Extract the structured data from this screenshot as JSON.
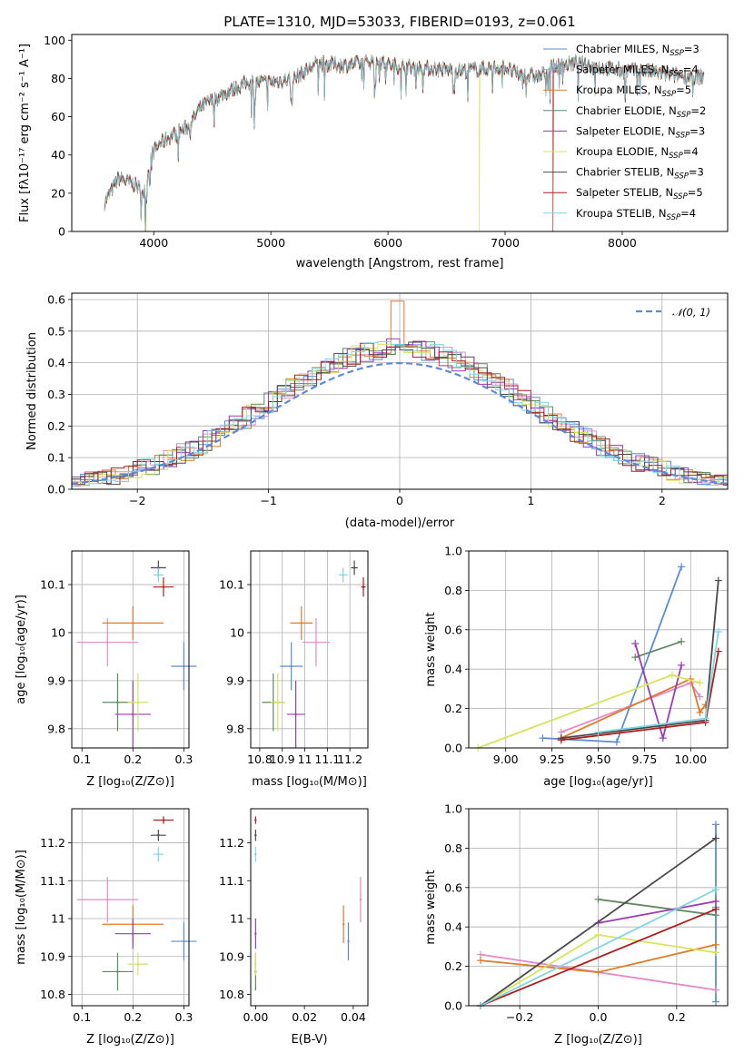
{
  "figure": {
    "title": "PLATE=1310, MJD=53033, FIBERID=0193, z=0.061"
  },
  "colors": {
    "Chabrier MILES": "#5a8bd8",
    "Salpeter MILES": "#e38ac8",
    "Kroupa MILES": "#e07b28",
    "Chabrier ELODIE": "#5f8a62",
    "Salpeter ELODIE": "#9b3cb5",
    "Kroupa ELODIE": "#d6e45a",
    "Chabrier STELIB": "#4a4a4a",
    "Salpeter STELIB": "#b01e1e",
    "Kroupa STELIB": "#7fd6e3"
  },
  "chart_data": [
    {
      "id": "spectrum",
      "type": "line",
      "xlabel": "wavelength [Angstrom, rest frame]",
      "ylabel": "Flux [fλ10⁻¹⁷ erg cm⁻² s⁻¹ A⁻¹]",
      "xlim": [
        3300,
        8900
      ],
      "ylim": [
        0,
        103
      ],
      "xticks": [
        4000,
        5000,
        6000,
        7000,
        8000
      ],
      "yticks": [
        0,
        20,
        40,
        60,
        80,
        100
      ],
      "legend": "top-right",
      "legend_entries": [
        {
          "model": "Chabrier MILES",
          "label": "Chabrier MILES, N",
          "sub": "SSP",
          "tail": "=3"
        },
        {
          "model": "Salpeter MILES",
          "label": "Salpeter MILES, N",
          "sub": "SSP",
          "tail": "=4"
        },
        {
          "model": "Kroupa MILES",
          "label": "Kroupa MILES, N",
          "sub": "SSP",
          "tail": "=5"
        },
        {
          "model": "Chabrier ELODIE",
          "label": "Chabrier ELODIE, N",
          "sub": "SSP",
          "tail": "=2"
        },
        {
          "model": "Salpeter ELODIE",
          "label": "Salpeter ELODIE, N",
          "sub": "SSP",
          "tail": "=3"
        },
        {
          "model": "Kroupa ELODIE",
          "label": "Kroupa ELODIE, N",
          "sub": "SSP",
          "tail": "=4"
        },
        {
          "model": "Chabrier STELIB",
          "label": "Chabrier STELIB, N",
          "sub": "SSP",
          "tail": "=3"
        },
        {
          "model": "Salpeter STELIB",
          "label": "Salpeter STELIB, N",
          "sub": "SSP",
          "tail": "=5"
        },
        {
          "model": "Kroupa STELIB",
          "label": "Kroupa STELIB, N",
          "sub": "SSP",
          "tail": "=4"
        }
      ],
      "continuum": [
        [
          3580,
          15
        ],
        [
          3700,
          28
        ],
        [
          3850,
          24
        ],
        [
          3920,
          20
        ],
        [
          3980,
          40
        ],
        [
          4050,
          46
        ],
        [
          4150,
          50
        ],
        [
          4300,
          55
        ],
        [
          4400,
          65
        ],
        [
          4600,
          72
        ],
        [
          4800,
          78
        ],
        [
          5000,
          78
        ],
        [
          5200,
          80
        ],
        [
          5400,
          88
        ],
        [
          5600,
          87
        ],
        [
          5800,
          88
        ],
        [
          5900,
          90
        ],
        [
          6000,
          87
        ],
        [
          6200,
          86
        ],
        [
          6400,
          85
        ],
        [
          6600,
          84
        ],
        [
          6800,
          85
        ],
        [
          7000,
          86
        ],
        [
          7100,
          82
        ],
        [
          7300,
          81
        ],
        [
          7400,
          86
        ],
        [
          7600,
          88
        ],
        [
          7800,
          86
        ],
        [
          8000,
          84
        ],
        [
          8200,
          84
        ],
        [
          8400,
          82
        ],
        [
          8600,
          81
        ],
        [
          8700,
          81
        ]
      ],
      "drops": [
        {
          "model": "Kroupa ELODIE",
          "x": 3930
        },
        {
          "model": "Kroupa ELODIE",
          "x": 6780
        },
        {
          "model": "Salpeter STELIB",
          "x": 7410
        }
      ]
    },
    {
      "id": "residuals",
      "type": "histogram",
      "xlabel": "(data-model)/error",
      "ylabel": "Normed distribution",
      "xlim": [
        -2.5,
        2.5
      ],
      "ylim": [
        0,
        0.62
      ],
      "xticks": [
        -2,
        -1,
        0,
        1,
        2
      ],
      "yticks": [
        0.0,
        0.1,
        0.2,
        0.3,
        0.4,
        0.5,
        0.6
      ],
      "grid": true,
      "legend": "top-right",
      "reference_label": "𝒩(0, 1)",
      "bin_width": 0.1
    },
    {
      "id": "age_vs_Z",
      "type": "scatter",
      "xlabel": "Z [log₁₀(Z/Z⊙)]",
      "ylabel": "age  [log₁₀(age/yr)]",
      "xlim": [
        0.08,
        0.31
      ],
      "ylim": [
        9.76,
        10.17
      ],
      "xticks": [
        0.1,
        0.2,
        0.3
      ],
      "yticks": [
        9.8,
        9.9,
        10.0,
        10.1
      ],
      "grid": true,
      "points": [
        {
          "model": "Chabrier MILES",
          "x": 0.3,
          "y": 9.93,
          "ex": 0.025,
          "ey": 0.05
        },
        {
          "model": "Salpeter MILES",
          "x": 0.15,
          "y": 9.98,
          "ex": 0.06,
          "ey": 0.05
        },
        {
          "model": "Kroupa MILES",
          "x": 0.2,
          "y": 10.02,
          "ex": 0.06,
          "ey": 0.035
        },
        {
          "model": "Chabrier ELODIE",
          "x": 0.17,
          "y": 9.855,
          "ex": 0.03,
          "ey": 0.06
        },
        {
          "model": "Salpeter ELODIE",
          "x": 0.2,
          "y": 9.83,
          "ex": 0.035,
          "ey": 0.07
        },
        {
          "model": "Kroupa ELODIE",
          "x": 0.21,
          "y": 9.855,
          "ex": 0.02,
          "ey": 0.06
        },
        {
          "model": "Chabrier STELIB",
          "x": 0.25,
          "y": 10.135,
          "ex": 0.015,
          "ey": 0.015
        },
        {
          "model": "Salpeter STELIB",
          "x": 0.26,
          "y": 10.095,
          "ex": 0.02,
          "ey": 0.02
        },
        {
          "model": "Kroupa STELIB",
          "x": 0.25,
          "y": 10.12,
          "ex": 0.01,
          "ey": 0.015
        }
      ]
    },
    {
      "id": "age_vs_mass",
      "type": "scatter",
      "xlabel": "mass [log₁₀(M/M⊙)]",
      "ylabel": "",
      "xlim": [
        10.76,
        11.28
      ],
      "ylim": [
        9.76,
        10.17
      ],
      "xticks": [
        10.8,
        10.9,
        11.0,
        11.1,
        11.2
      ],
      "yticks": [
        9.8,
        9.9,
        10.0,
        10.1
      ],
      "grid": true,
      "points": [
        {
          "model": "Chabrier MILES",
          "x": 10.94,
          "y": 9.93,
          "ex": 0.05,
          "ey": 0.05
        },
        {
          "model": "Salpeter MILES",
          "x": 11.05,
          "y": 9.98,
          "ex": 0.06,
          "ey": 0.05
        },
        {
          "model": "Kroupa MILES",
          "x": 10.985,
          "y": 10.02,
          "ex": 0.05,
          "ey": 0.035
        },
        {
          "model": "Chabrier ELODIE",
          "x": 10.86,
          "y": 9.855,
          "ex": 0.05,
          "ey": 0.06
        },
        {
          "model": "Salpeter ELODIE",
          "x": 10.96,
          "y": 9.83,
          "ex": 0.04,
          "ey": 0.07
        },
        {
          "model": "Kroupa ELODIE",
          "x": 10.88,
          "y": 9.855,
          "ex": 0.03,
          "ey": 0.06
        },
        {
          "model": "Chabrier STELIB",
          "x": 11.22,
          "y": 10.135,
          "ex": 0.015,
          "ey": 0.015
        },
        {
          "model": "Salpeter STELIB",
          "x": 11.26,
          "y": 10.095,
          "ex": 0.01,
          "ey": 0.02
        },
        {
          "model": "Kroupa STELIB",
          "x": 11.17,
          "y": 10.12,
          "ex": 0.02,
          "ey": 0.015
        }
      ]
    },
    {
      "id": "weight_vs_age",
      "type": "line",
      "xlabel": "age  [log₁₀(age/yr)]",
      "ylabel": "mass weight",
      "xlim": [
        8.8,
        10.2
      ],
      "ylim": [
        0,
        1.0
      ],
      "xticks": [
        9.0,
        9.25,
        9.5,
        9.75,
        10.0
      ],
      "xticklabels": [
        "9.00",
        "9.25",
        "9.50",
        "9.75",
        "10.00"
      ],
      "yticks": [
        0.0,
        0.2,
        0.4,
        0.6,
        0.8,
        1.0
      ],
      "grid": true,
      "series": [
        {
          "model": "Chabrier MILES",
          "x": [
            9.2,
            9.6,
            9.95
          ],
          "y": [
            0.05,
            0.03,
            0.92
          ]
        },
        {
          "model": "Salpeter MILES",
          "x": [
            9.3,
            10.0,
            10.05
          ],
          "y": [
            0.08,
            0.33,
            0.26
          ]
        },
        {
          "model": "Kroupa MILES",
          "x": [
            9.3,
            10.0,
            10.05,
            10.08
          ],
          "y": [
            0.05,
            0.35,
            0.18,
            0.22
          ]
        },
        {
          "model": "Chabrier ELODIE",
          "x": [
            9.7,
            9.95
          ],
          "y": [
            0.46,
            0.54
          ]
        },
        {
          "model": "Salpeter ELODIE",
          "x": [
            9.7,
            9.85,
            9.95
          ],
          "y": [
            0.53,
            0.05,
            0.42
          ]
        },
        {
          "model": "Kroupa ELODIE",
          "x": [
            8.85,
            9.9,
            10.05
          ],
          "y": [
            0.0,
            0.37,
            0.33
          ]
        },
        {
          "model": "Chabrier STELIB",
          "x": [
            9.3,
            10.08,
            10.15
          ],
          "y": [
            0.05,
            0.14,
            0.85
          ]
        },
        {
          "model": "Salpeter STELIB",
          "x": [
            9.3,
            10.08,
            10.15
          ],
          "y": [
            0.04,
            0.13,
            0.49
          ]
        },
        {
          "model": "Kroupa STELIB",
          "x": [
            9.5,
            10.08,
            10.15
          ],
          "y": [
            0.08,
            0.15,
            0.59
          ]
        }
      ]
    },
    {
      "id": "mass_vs_Z",
      "type": "scatter",
      "xlabel": "Z [log₁₀(Z/Z⊙)]",
      "ylabel": "mass [log₁₀(M/M⊙)]",
      "xlim": [
        0.08,
        0.31
      ],
      "ylim": [
        10.77,
        11.29
      ],
      "xticks": [
        0.1,
        0.2,
        0.3
      ],
      "yticks": [
        10.8,
        10.9,
        11.0,
        11.1,
        11.2
      ],
      "grid": true,
      "points": [
        {
          "model": "Chabrier MILES",
          "x": 0.3,
          "y": 10.94,
          "ex": 0.025,
          "ey": 0.05
        },
        {
          "model": "Salpeter MILES",
          "x": 0.15,
          "y": 11.05,
          "ex": 0.06,
          "ey": 0.06
        },
        {
          "model": "Kroupa MILES",
          "x": 0.2,
          "y": 10.985,
          "ex": 0.06,
          "ey": 0.05
        },
        {
          "model": "Chabrier ELODIE",
          "x": 0.17,
          "y": 10.86,
          "ex": 0.03,
          "ey": 0.05
        },
        {
          "model": "Salpeter ELODIE",
          "x": 0.2,
          "y": 10.96,
          "ex": 0.035,
          "ey": 0.04
        },
        {
          "model": "Kroupa ELODIE",
          "x": 0.21,
          "y": 10.88,
          "ex": 0.02,
          "ey": 0.03
        },
        {
          "model": "Chabrier STELIB",
          "x": 0.25,
          "y": 11.22,
          "ex": 0.015,
          "ey": 0.015
        },
        {
          "model": "Salpeter STELIB",
          "x": 0.26,
          "y": 11.26,
          "ex": 0.02,
          "ey": 0.01
        },
        {
          "model": "Kroupa STELIB",
          "x": 0.25,
          "y": 11.17,
          "ex": 0.01,
          "ey": 0.02
        }
      ]
    },
    {
      "id": "mass_vs_ebv",
      "type": "scatter",
      "xlabel": "E(B-V)",
      "ylabel": "",
      "xlim": [
        -0.002,
        0.046
      ],
      "ylim": [
        10.77,
        11.29
      ],
      "xticks": [
        0.0,
        0.02,
        0.04
      ],
      "xticklabels": [
        "0.00",
        "0.02",
        "0.04"
      ],
      "yticks": [
        10.8,
        10.9,
        11.0,
        11.1,
        11.2
      ],
      "grid": false,
      "points": [
        {
          "model": "Chabrier MILES",
          "x": 0.038,
          "y": 10.94,
          "ex": 0.0,
          "ey": 0.05
        },
        {
          "model": "Salpeter MILES",
          "x": 0.043,
          "y": 11.05,
          "ex": 0.0,
          "ey": 0.06
        },
        {
          "model": "Kroupa MILES",
          "x": 0.036,
          "y": 10.985,
          "ex": 0.0,
          "ey": 0.05
        },
        {
          "model": "Chabrier ELODIE",
          "x": 0.0,
          "y": 10.86,
          "ex": 0.0,
          "ey": 0.05
        },
        {
          "model": "Salpeter ELODIE",
          "x": 0.0,
          "y": 10.96,
          "ex": 0.0,
          "ey": 0.04
        },
        {
          "model": "Kroupa ELODIE",
          "x": 0.0,
          "y": 10.88,
          "ex": 0.0,
          "ey": 0.03
        },
        {
          "model": "Chabrier STELIB",
          "x": 0.0,
          "y": 11.22,
          "ex": 0.0,
          "ey": 0.015
        },
        {
          "model": "Salpeter STELIB",
          "x": 0.0,
          "y": 11.26,
          "ex": 0.0,
          "ey": 0.01
        },
        {
          "model": "Kroupa STELIB",
          "x": 0.0,
          "y": 11.17,
          "ex": 0.0,
          "ey": 0.02
        }
      ]
    },
    {
      "id": "weight_vs_Z",
      "type": "line",
      "xlabel": "Z [log₁₀(Z/Z⊙)]",
      "ylabel": "mass weight",
      "xlim": [
        -0.33,
        0.33
      ],
      "ylim": [
        0,
        1.0
      ],
      "xticks": [
        -0.2,
        0.0,
        0.2
      ],
      "xticklabels": [
        "−0.2",
        "0.0",
        "0.2"
      ],
      "yticks": [
        0.0,
        0.2,
        0.4,
        0.6,
        0.8,
        1.0
      ],
      "grid": true,
      "series": [
        {
          "model": "Chabrier MILES",
          "x": [
            0.3,
            0.3,
            0.3
          ],
          "y": [
            0.02,
            0.5,
            0.92
          ]
        },
        {
          "model": "Salpeter MILES",
          "x": [
            -0.3,
            0.3
          ],
          "y": [
            0.26,
            0.08
          ]
        },
        {
          "model": "Kroupa MILES",
          "x": [
            -0.3,
            0.0,
            0.3
          ],
          "y": [
            0.23,
            0.17,
            0.31
          ]
        },
        {
          "model": "Chabrier ELODIE",
          "x": [
            0.0,
            0.3
          ],
          "y": [
            0.54,
            0.46
          ]
        },
        {
          "model": "Salpeter ELODIE",
          "x": [
            0.0,
            0.3
          ],
          "y": [
            0.42,
            0.53
          ]
        },
        {
          "model": "Kroupa ELODIE",
          "x": [
            -0.3,
            0.0,
            0.3
          ],
          "y": [
            0.0,
            0.36,
            0.27
          ]
        },
        {
          "model": "Chabrier STELIB",
          "x": [
            -0.3,
            0.3
          ],
          "y": [
            0.0,
            0.85
          ]
        },
        {
          "model": "Salpeter STELIB",
          "x": [
            -0.3,
            0.3
          ],
          "y": [
            0.0,
            0.49
          ]
        },
        {
          "model": "Kroupa STELIB",
          "x": [
            -0.3,
            0.3
          ],
          "y": [
            0.0,
            0.59
          ]
        }
      ]
    }
  ]
}
